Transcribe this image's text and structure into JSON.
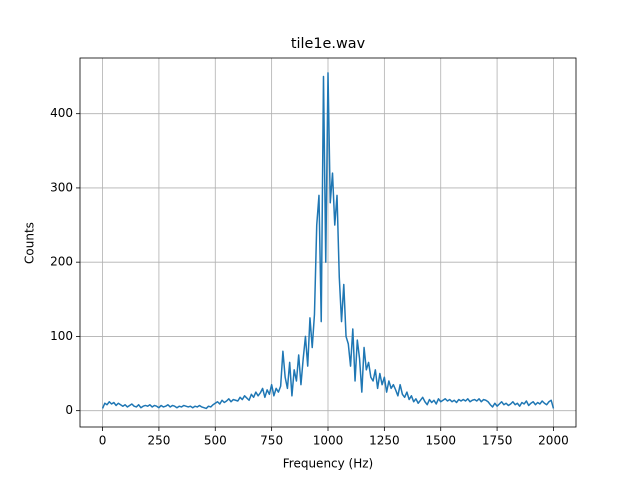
{
  "chart_data": {
    "type": "line",
    "title": "tile1e.wav",
    "x_label": "Frequency (Hz)",
    "y_label": "Counts",
    "color": "#1f77b4",
    "grid": true,
    "xlim": [
      -100,
      2100
    ],
    "ylim": [
      -22,
      475
    ],
    "xticks": [
      0,
      250,
      500,
      750,
      1000,
      1250,
      1500,
      1750,
      2000
    ],
    "yticks": [
      0,
      100,
      200,
      300,
      400
    ],
    "x": [
      0,
      10,
      20,
      30,
      40,
      50,
      60,
      70,
      80,
      90,
      100,
      110,
      120,
      130,
      140,
      150,
      160,
      170,
      180,
      190,
      200,
      210,
      220,
      230,
      240,
      250,
      260,
      270,
      280,
      290,
      300,
      310,
      320,
      330,
      340,
      350,
      360,
      370,
      380,
      390,
      400,
      410,
      420,
      430,
      440,
      450,
      460,
      470,
      480,
      490,
      500,
      510,
      520,
      530,
      540,
      550,
      560,
      570,
      580,
      590,
      600,
      610,
      620,
      630,
      640,
      650,
      660,
      670,
      680,
      690,
      700,
      710,
      720,
      730,
      740,
      750,
      760,
      770,
      780,
      790,
      800,
      810,
      820,
      830,
      840,
      850,
      860,
      870,
      880,
      890,
      900,
      910,
      920,
      930,
      940,
      950,
      960,
      970,
      980,
      990,
      1000,
      1010,
      1020,
      1030,
      1040,
      1050,
      1060,
      1070,
      1080,
      1090,
      1100,
      1110,
      1120,
      1130,
      1140,
      1150,
      1160,
      1170,
      1180,
      1190,
      1200,
      1210,
      1220,
      1230,
      1240,
      1250,
      1260,
      1270,
      1280,
      1290,
      1300,
      1310,
      1320,
      1330,
      1340,
      1350,
      1360,
      1370,
      1380,
      1390,
      1400,
      1410,
      1420,
      1430,
      1440,
      1450,
      1460,
      1470,
      1480,
      1490,
      1500,
      1510,
      1520,
      1530,
      1540,
      1550,
      1560,
      1570,
      1580,
      1590,
      1600,
      1610,
      1620,
      1630,
      1640,
      1650,
      1660,
      1670,
      1680,
      1690,
      1700,
      1710,
      1720,
      1730,
      1740,
      1750,
      1760,
      1770,
      1780,
      1790,
      1800,
      1810,
      1820,
      1830,
      1840,
      1850,
      1860,
      1870,
      1880,
      1890,
      1900,
      1910,
      1920,
      1930,
      1940,
      1950,
      1960,
      1970,
      1980,
      1990,
      2000
    ],
    "values": [
      3,
      10,
      8,
      12,
      9,
      11,
      7,
      10,
      8,
      6,
      8,
      5,
      7,
      9,
      6,
      5,
      8,
      4,
      6,
      7,
      6,
      8,
      5,
      7,
      6,
      4,
      7,
      5,
      6,
      8,
      5,
      7,
      6,
      4,
      6,
      5,
      7,
      6,
      5,
      6,
      4,
      6,
      5,
      7,
      5,
      4,
      3,
      6,
      5,
      8,
      10,
      12,
      9,
      14,
      11,
      13,
      16,
      12,
      15,
      14,
      13,
      18,
      15,
      20,
      17,
      14,
      22,
      18,
      25,
      20,
      24,
      30,
      18,
      28,
      22,
      35,
      20,
      30,
      25,
      33,
      80,
      45,
      30,
      65,
      20,
      55,
      40,
      75,
      35,
      70,
      100,
      60,
      125,
      85,
      130,
      250,
      290,
      120,
      450,
      200,
      455,
      280,
      320,
      250,
      290,
      180,
      120,
      170,
      100,
      90,
      60,
      110,
      40,
      95,
      70,
      25,
      85,
      55,
      65,
      45,
      40,
      55,
      30,
      50,
      35,
      45,
      25,
      40,
      30,
      35,
      28,
      20,
      35,
      22,
      18,
      25,
      15,
      20,
      12,
      16,
      10,
      14,
      18,
      12,
      8,
      15,
      11,
      14,
      9,
      16,
      12,
      14,
      16,
      13,
      15,
      12,
      14,
      11,
      15,
      13,
      15,
      13,
      16,
      12,
      14,
      15,
      13,
      16,
      12,
      15,
      14,
      12,
      8,
      5,
      10,
      6,
      9,
      12,
      8,
      10,
      7,
      9,
      12,
      8,
      10,
      6,
      11,
      9,
      13,
      7,
      10,
      12,
      8,
      11,
      9,
      13,
      10,
      8,
      12,
      14,
      3
    ]
  }
}
